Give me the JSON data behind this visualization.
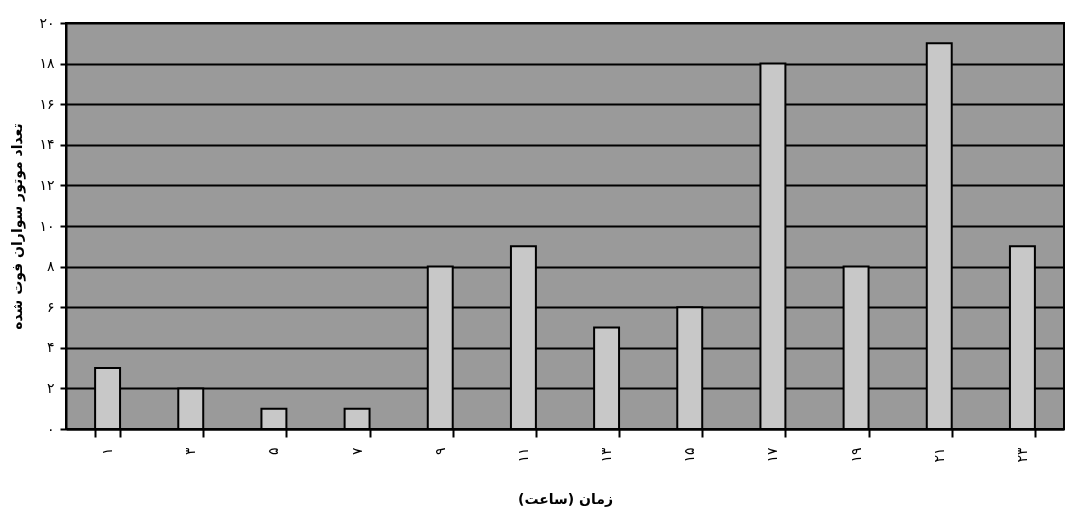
{
  "chart_data": {
    "type": "bar",
    "xlabel": "زمان (ساعت)",
    "ylabel": "تعداد موتور سواران فوت شده",
    "categories": [
      "۱",
      "۳",
      "۵",
      "۷",
      "۹",
      "۱۱",
      "۱۳",
      "۱۵",
      "۱۷",
      "۱۹",
      "۲۱",
      "۲۳"
    ],
    "values": [
      3,
      2,
      1,
      1,
      8,
      9,
      5,
      6,
      18,
      8,
      19,
      9
    ],
    "color": "#c8c8c8",
    "ylim": [
      0,
      20
    ],
    "yticks": [
      {
        "value": 0,
        "label": "۰"
      },
      {
        "value": 2,
        "label": "۲"
      },
      {
        "value": 4,
        "label": "۴"
      },
      {
        "value": 6,
        "label": "۶"
      },
      {
        "value": 8,
        "label": "۸"
      },
      {
        "value": 10,
        "label": "۱۰"
      },
      {
        "value": 12,
        "label": "۱۲"
      },
      {
        "value": 14,
        "label": "۱۴"
      },
      {
        "value": 16,
        "label": "۱۶"
      },
      {
        "value": 18,
        "label": "۱۸"
      },
      {
        "value": 20,
        "label": "۲۰"
      }
    ],
    "grid": "y"
  }
}
